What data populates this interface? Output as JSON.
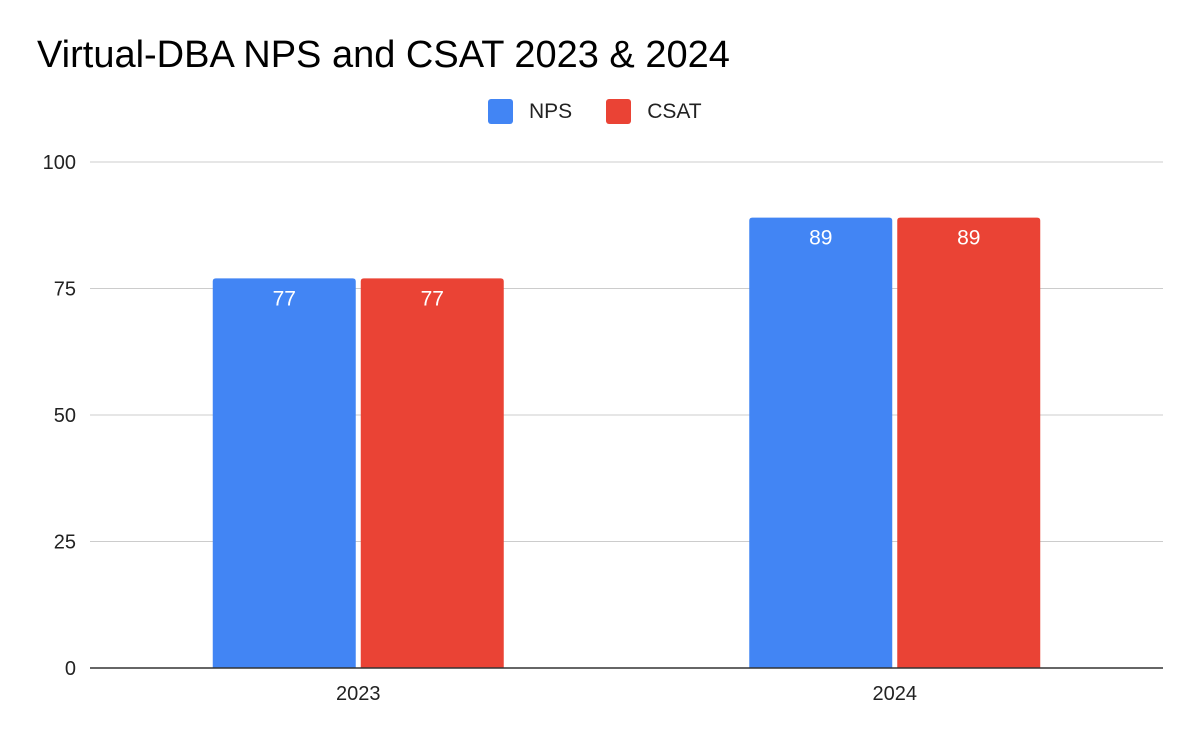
{
  "chart_data": {
    "type": "bar",
    "title": "Virtual-DBA NPS and CSAT 2023 & 2024",
    "xlabel": "",
    "ylabel": "",
    "categories": [
      "2023",
      "2024"
    ],
    "series": [
      {
        "name": "NPS",
        "values": [
          77,
          89
        ],
        "color": "#4285f4"
      },
      {
        "name": "CSAT",
        "values": [
          77,
          89
        ],
        "color": "#ea4335"
      }
    ],
    "ylim": [
      0,
      100
    ],
    "yticks": [
      0,
      25,
      50,
      75,
      100
    ],
    "grid": true,
    "legend": "top-center",
    "data_labels": true
  }
}
